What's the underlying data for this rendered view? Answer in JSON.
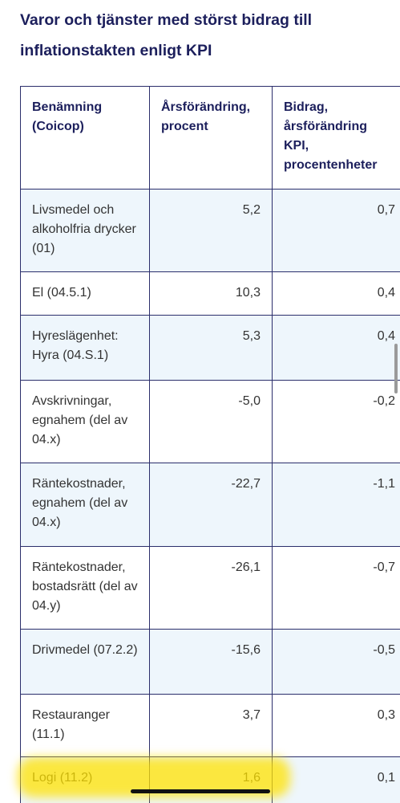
{
  "header": {
    "title": "Varor och tjänster med störst bidrag till inflationstakten enligt KPI"
  },
  "table": {
    "columns": [
      "Benämning (Coicop)",
      "Årsförändring, procent",
      "Bidrag, årsförändring KPI, procentenheter"
    ],
    "rows": [
      [
        "Livsmedel och alkoholfria drycker (01)",
        "5,2",
        "0,7"
      ],
      [
        "El (04.5.1)",
        "10,3",
        "0,4"
      ],
      [
        "Hyreslägenhet: Hyra (04.S.1)",
        "5,3",
        "0,4"
      ],
      [
        "Avskrivningar, egnahem (del av 04.x)",
        "-5,0",
        "-0,2"
      ],
      [
        "Räntekostnader, egnahem (del av 04.x)",
        "-22,7",
        "-1,1"
      ],
      [
        "Räntekostnader, bostadsrätt (del av 04.y)",
        "-26,1",
        "-0,7"
      ],
      [
        "Drivmedel (07.2.2)",
        "-15,6",
        "-0,5"
      ],
      [
        "Restauranger (11.1)",
        "3,7",
        "0,3"
      ],
      [
        "Logi (11.2)",
        "1,6",
        "0,1"
      ]
    ]
  }
}
